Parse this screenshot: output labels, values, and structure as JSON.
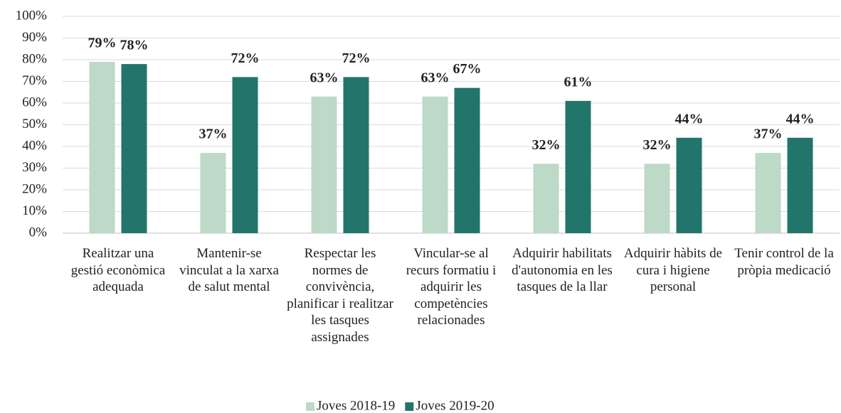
{
  "chart_data": {
    "type": "bar",
    "categories": [
      "Realitzar una gestió econòmica adequada",
      "Mantenir-se vinculat a la xarxa de salut mental",
      "Respectar les normes de convivència, planificar i realitzar les tasques assignades",
      "Vincular-se al recurs formatiu i adquirir les competències relacionades",
      "Adquirir habilitats d'autonomia en les tasques de la llar",
      "Adquirir hàbits de cura i higiene personal",
      "Tenir control de la pròpia medicació"
    ],
    "series": [
      {
        "name": "Joves 2018-19",
        "color": "#bdd9c7",
        "values": [
          79,
          37,
          63,
          63,
          32,
          32,
          37
        ],
        "value_labels": [
          "79%",
          "37%",
          "63%",
          "63%",
          "32%",
          "32%",
          "37%"
        ]
      },
      {
        "name": "Joves 2019-20",
        "color": "#22756b",
        "values": [
          78,
          72,
          72,
          67,
          61,
          44,
          44
        ],
        "value_labels": [
          "78%",
          "72%",
          "72%",
          "67%",
          "61%",
          "44%",
          "44%"
        ]
      }
    ],
    "ylim": [
      0,
      100
    ],
    "yticks": [
      {
        "value": 0,
        "label": "0%"
      },
      {
        "value": 10,
        "label": "10%"
      },
      {
        "value": 20,
        "label": "20%"
      },
      {
        "value": 30,
        "label": "30%"
      },
      {
        "value": 40,
        "label": "40%"
      },
      {
        "value": 50,
        "label": "50%"
      },
      {
        "value": 60,
        "label": "60%"
      },
      {
        "value": 70,
        "label": "70%"
      },
      {
        "value": 80,
        "label": "80%"
      },
      {
        "value": 90,
        "label": "90%"
      },
      {
        "value": 100,
        "label": "100%"
      }
    ],
    "grid": true,
    "legend": "bottom"
  }
}
